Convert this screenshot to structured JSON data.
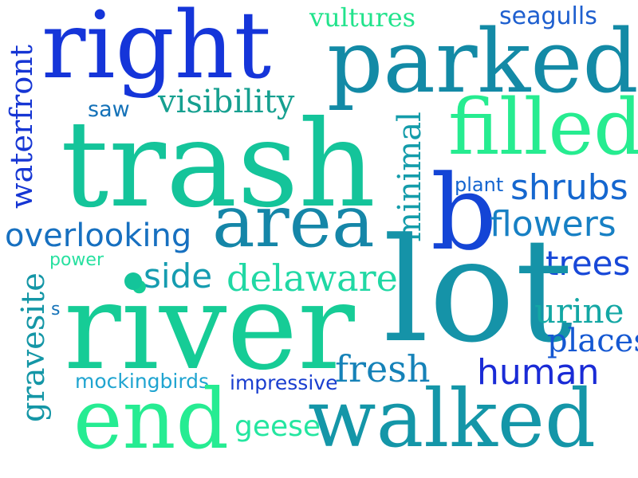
{
  "words": [
    {
      "text": "right",
      "color": "#1535d9"
    },
    {
      "text": "vultures",
      "color": "#22e38c"
    },
    {
      "text": "seagulls",
      "color": "#1e5fcf"
    },
    {
      "text": "parked",
      "color": "#138aa6"
    },
    {
      "text": "waterfront",
      "color": "#1636d4"
    },
    {
      "text": "saw",
      "color": "#1572b8"
    },
    {
      "text": "visibility",
      "color": "#16a090"
    },
    {
      "text": "minimal",
      "color": "#149caa"
    },
    {
      "text": "filled",
      "color": "#26ec90"
    },
    {
      "text": "trash",
      "color": "#14c49a"
    },
    {
      "text": "plant",
      "color": "#1465d0"
    },
    {
      "text": "shrubs",
      "color": "#1567cf"
    },
    {
      "text": "b",
      "color": "#1445d6"
    },
    {
      "text": "flowers",
      "color": "#1780c4"
    },
    {
      "text": "overlooking",
      "color": "#1770c0"
    },
    {
      "text": "area",
      "color": "#1586a8"
    },
    {
      "text": "power",
      "color": "#28e0a0"
    },
    {
      "text": "gravesite",
      "color": "#1496a6"
    },
    {
      "text": "trees",
      "color": "#1848d8"
    },
    {
      "text": "side",
      "color": "#159cb0"
    },
    {
      "text": "delaware",
      "color": "#20d8a4"
    },
    {
      "text": "lot",
      "color": "#1593a8"
    },
    {
      "text": "s",
      "color": "#1573b8"
    },
    {
      "text": "river",
      "color": "#16cc96"
    },
    {
      "text": "urine",
      "color": "#13a7a4"
    },
    {
      "text": "places",
      "color": "#1558d2"
    },
    {
      "text": "fresh",
      "color": "#1682b8"
    },
    {
      "text": "human",
      "color": "#1a2bd6"
    },
    {
      "text": "mockingbirds",
      "color": "#1fa4d0"
    },
    {
      "text": "impressive",
      "color": "#1a3ecf"
    },
    {
      "text": "end",
      "color": "#26ec92"
    },
    {
      "text": "geese",
      "color": "#24e6a0"
    },
    {
      "text": "walked",
      "color": "#1496a8"
    }
  ],
  "dot_color": "#14c49a"
}
